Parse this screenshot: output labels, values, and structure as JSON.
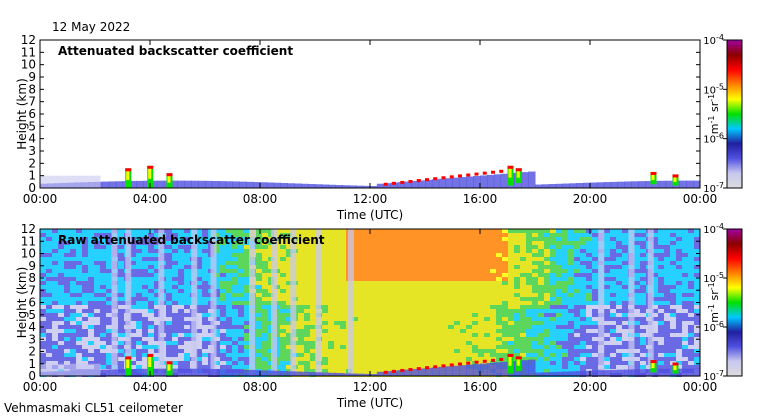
{
  "date": "12 May 2022",
  "footer": "Vehmasmaki CL51 ceilometer",
  "colorbar": {
    "ticks": [
      "10-7",
      "10-6",
      "10-5",
      "10-4"
    ],
    "unit": "m-1 sr-1",
    "stops": [
      "#dcdcdc",
      "#c8c8f0",
      "#5050e0",
      "#2020a0",
      "#00c8ff",
      "#00e000",
      "#ffff00",
      "#ff8000",
      "#ff0000",
      "#8b0000",
      "#a000a0"
    ]
  },
  "chart_data": [
    {
      "type": "heatmap",
      "title": "Attenuated backscatter coefficient",
      "xlabel": "Time (UTC)",
      "ylabel": "Height (km)",
      "x_ticks": [
        "00:00",
        "04:00",
        "08:00",
        "12:00",
        "16:00",
        "20:00",
        "00:00"
      ],
      "y_ticks": [
        0,
        1,
        2,
        3,
        4,
        5,
        6,
        7,
        8,
        9,
        10,
        11,
        12
      ],
      "ylim": [
        0,
        12
      ],
      "xlim_hours": [
        0,
        24
      ],
      "color_scale": "log",
      "color_range": [
        1e-07,
        0.0001
      ]
    },
    {
      "type": "heatmap",
      "title": "Raw attenuated backscatter coefficient",
      "xlabel": "Time (UTC)",
      "ylabel": "Height (km)",
      "x_ticks": [
        "00:00",
        "04:00",
        "08:00",
        "12:00",
        "16:00",
        "20:00",
        "00:00"
      ],
      "y_ticks": [
        0,
        1,
        2,
        3,
        4,
        5,
        6,
        7,
        8,
        9,
        10,
        11,
        12
      ],
      "ylim": [
        0,
        12
      ],
      "xlim_hours": [
        0,
        24
      ],
      "color_scale": "log",
      "color_range": [
        1e-07,
        0.0001
      ]
    }
  ]
}
